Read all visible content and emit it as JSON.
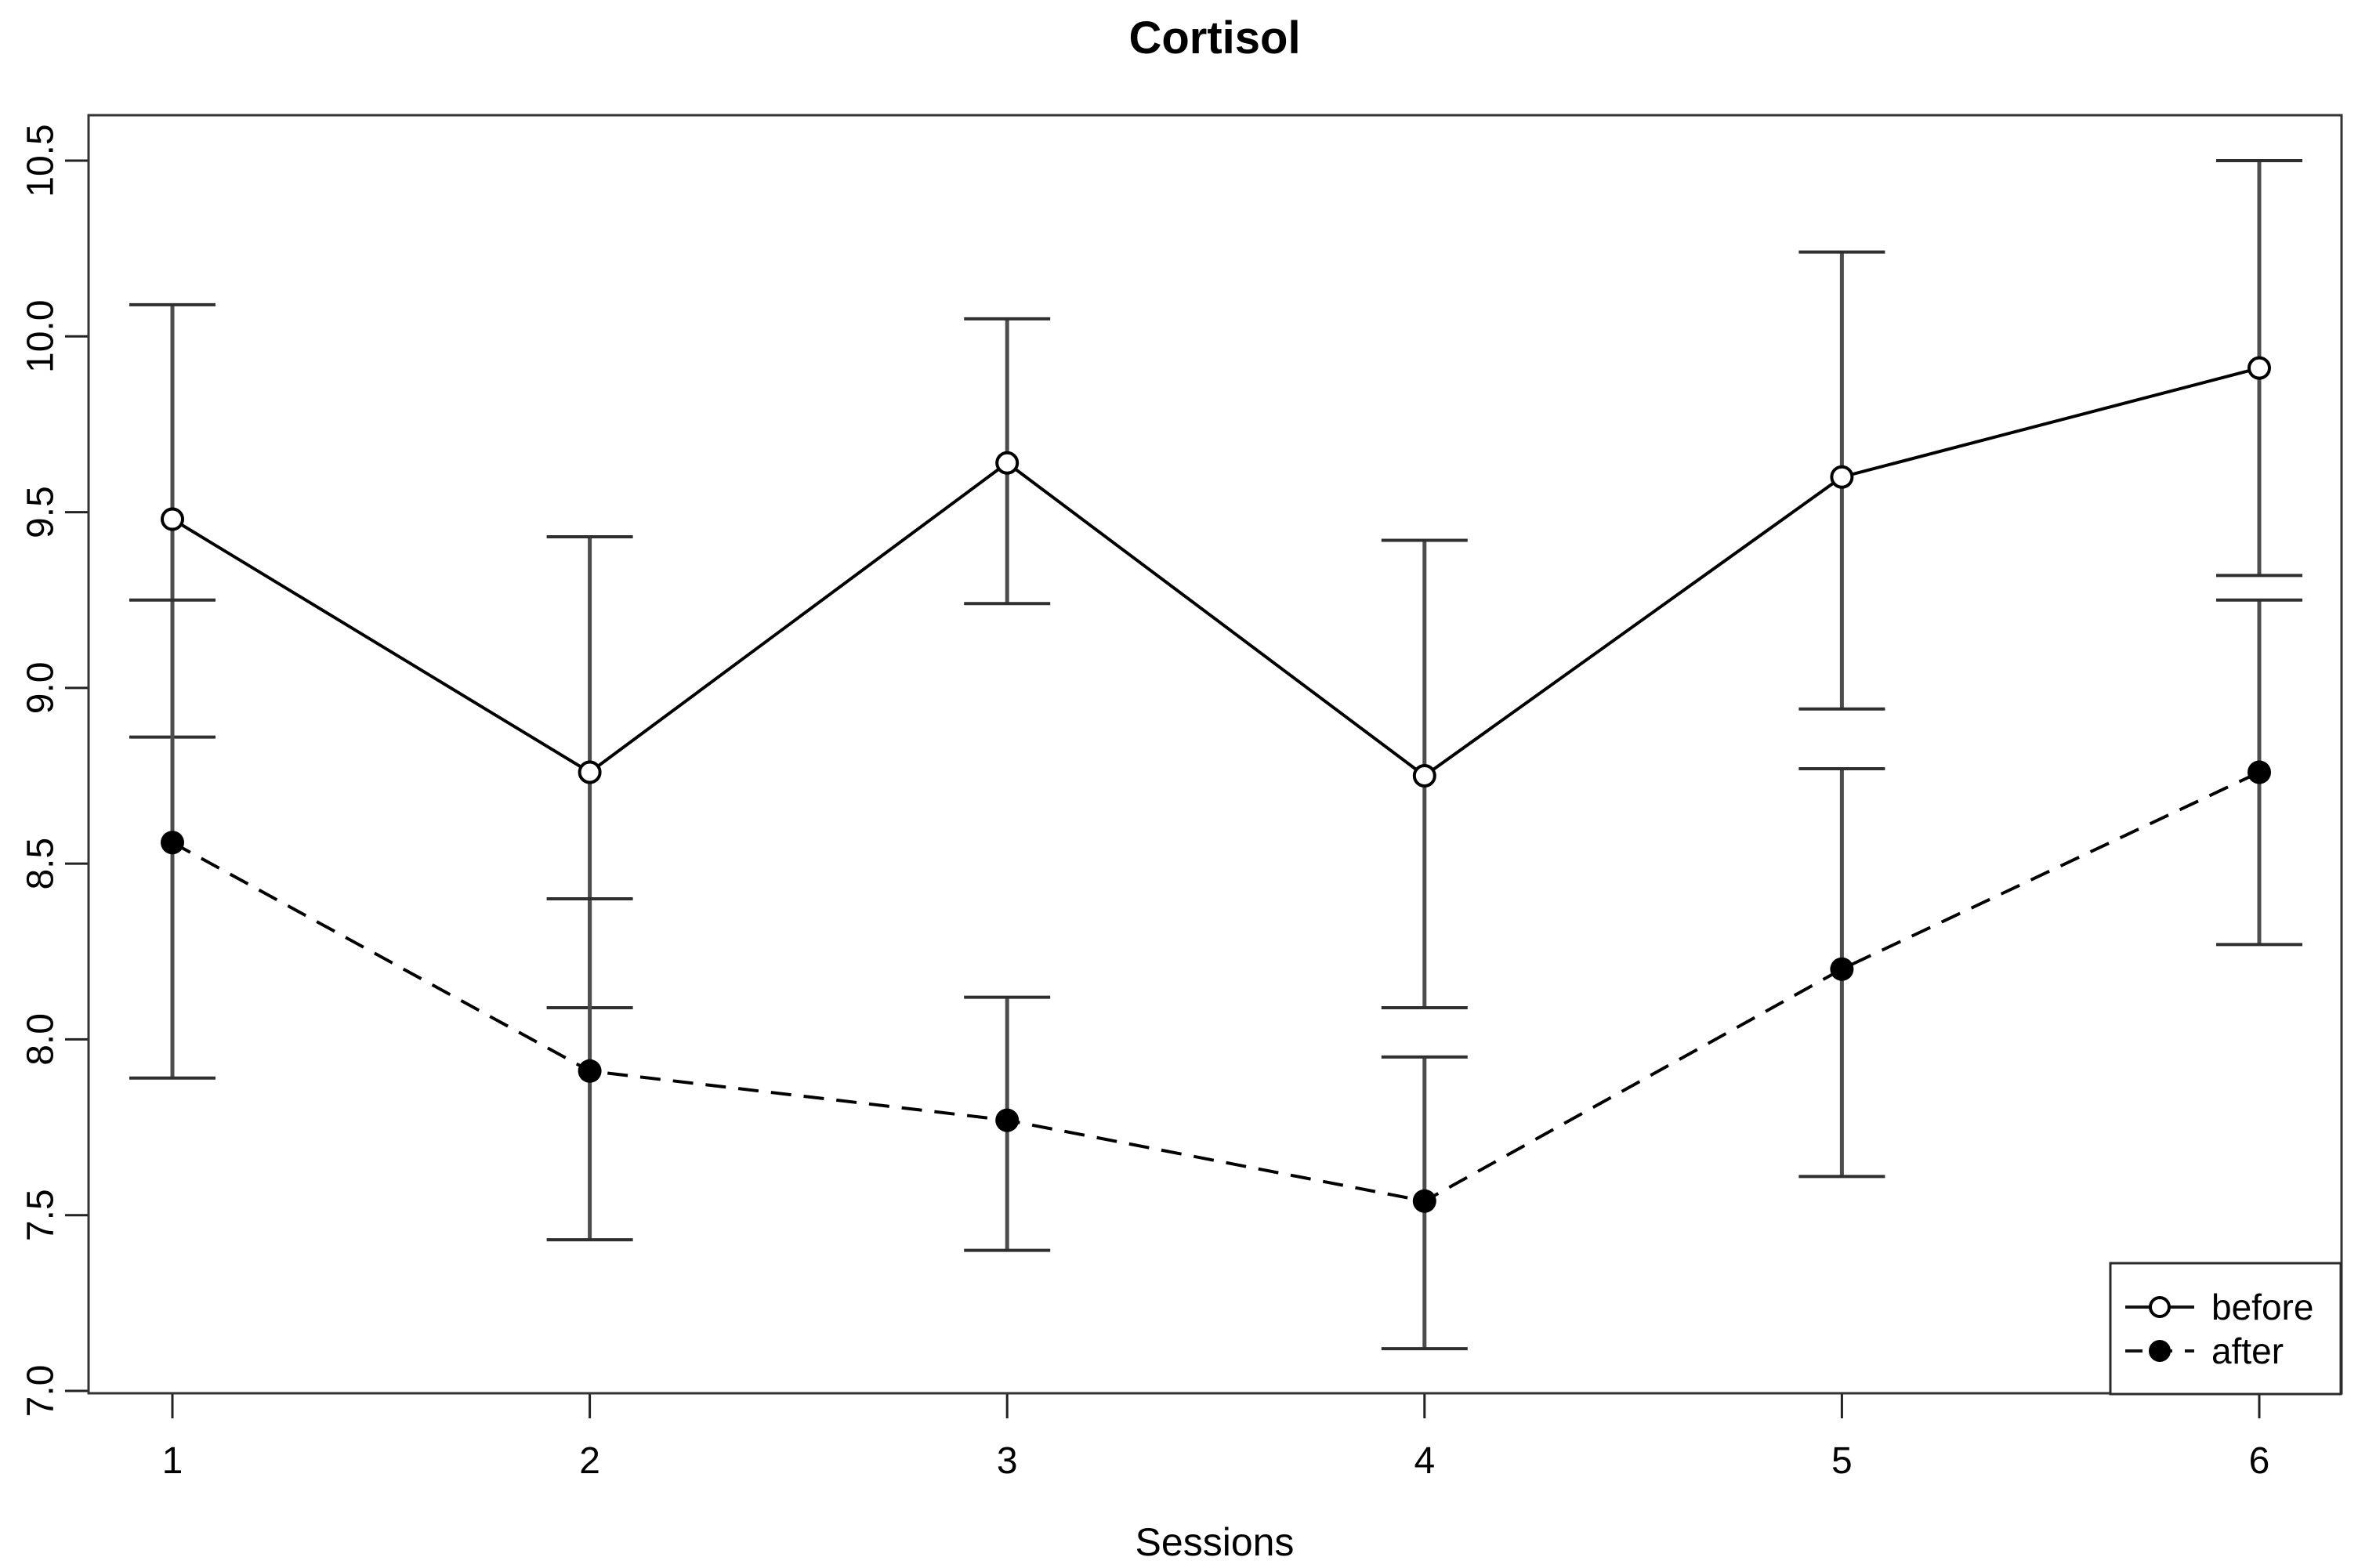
{
  "chart_data": {
    "type": "line",
    "title": "Cortisol",
    "xlabel": "Sessions",
    "ylabel": "",
    "x_ticks": [
      1,
      2,
      3,
      4,
      5,
      6
    ],
    "y_ticks": [
      7.0,
      7.5,
      8.0,
      8.5,
      9.0,
      9.5,
      10.0,
      10.5
    ],
    "ylim": [
      7.0,
      10.5
    ],
    "grid": false,
    "legend_position": "bottom-right",
    "series": [
      {
        "name": "before",
        "marker": "open-circle",
        "line_style": "solid",
        "values": [
          9.48,
          8.76,
          9.64,
          8.75,
          9.6,
          9.91
        ],
        "err_high": [
          10.09,
          9.43,
          10.05,
          9.42,
          10.24,
          10.5
        ],
        "err_low": [
          8.86,
          8.09,
          9.24,
          8.09,
          8.94,
          9.32
        ]
      },
      {
        "name": "after",
        "marker": "filled-circle",
        "line_style": "dashed",
        "values": [
          8.56,
          7.91,
          7.77,
          7.54,
          8.2,
          8.76
        ],
        "err_high": [
          9.25,
          8.4,
          8.12,
          7.95,
          8.77,
          9.25
        ],
        "err_low": [
          7.89,
          7.43,
          7.4,
          7.12,
          7.61,
          8.27
        ]
      }
    ],
    "colors": {
      "series_line": "#000000",
      "error_bar": "#4d4d4d",
      "background": "#ffffff"
    }
  }
}
